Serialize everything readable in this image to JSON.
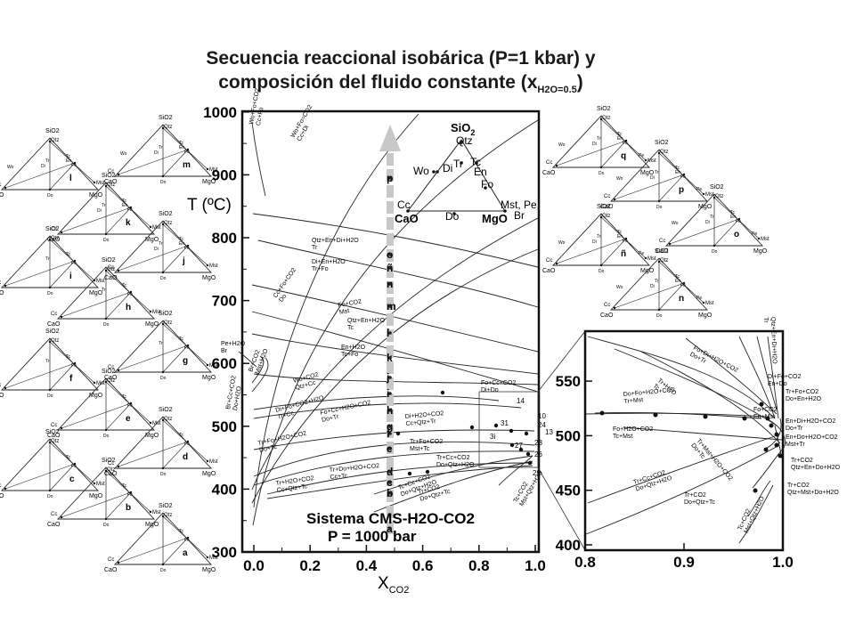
{
  "title": {
    "line1": "Secuencia reaccional isobárica (P=1 kbar) y",
    "line2_pre": "composición del fluido constante (x",
    "line2_sub": "H2O=0.5",
    "line2_post": ")"
  },
  "main_chart": {
    "type": "line",
    "ylabel": "T (ºC)",
    "xlabel_main": "X",
    "xlabel_sub": "CO2",
    "x_ticks": [
      "0.0",
      "0.2",
      "0.4",
      "0.6",
      "0.8",
      "1.0"
    ],
    "y_ticks": [
      "300",
      "400",
      "500",
      "600",
      "700",
      "800",
      "900",
      "1000"
    ],
    "system_label_1": "Sistema CMS-H2O-CO2",
    "system_label_2": "P = 1000 bar",
    "seq_letters": [
      "p",
      "o",
      "ñ",
      "n",
      "m",
      "l",
      "k",
      "j",
      "i",
      "h",
      "g",
      "f",
      "e",
      "d",
      "c",
      "b",
      "a"
    ],
    "point_numbers": [
      "14",
      "10",
      "24",
      "13",
      "31",
      "3i",
      "27",
      "28",
      "26",
      "29"
    ],
    "reactions": [
      "Wo+Fo+CO2 Cc+Fo",
      "Wo+Fo=CO2 Cc+Di",
      "Qtz+En+Di+H2O Tr",
      "Di+En+H2O Tr+Fo",
      "Cc+Fo+CO2 Do",
      "Fo+CO2 Mst",
      "Qtz+En+H2O Tc",
      "En+H2O Tc+Fo",
      "Wo+CO2 Qtz+Cc",
      "Di+Fo+CO2+H2O Tr+Cc",
      "Fo+Cc+H2O+CO2 Do+Tr",
      "Tr+Fo+H2O+CO2 Do+Tc",
      "Fo+Cc+CO2 Di+Do",
      "Di+H2O+CO2 Cc+Qtz+Tr",
      "Tr+Fo+CO2 Mst+Tc",
      "Tr+Cc+CO2 Do+Qtz+H2O",
      "Tr+Do+H2O+CO2 Cc+Tc",
      "Tr+H2O+CO2 Cc+Qtz+Tc",
      "Tc+Cc+CO2 Do+Qtz+H2O",
      "Tr+CO2 Do+Qtz+Tc",
      "Tc+CO2 Mst+Qtz+H2O",
      "Pe+H2O Br",
      "Br+Cc+CO2 Do+H2O",
      "Br+CO2 Mst+H2O"
    ]
  },
  "inset_phase": {
    "apex": "SiO",
    "apex_sub": "2",
    "minerals": [
      "Qtz",
      "Wo",
      "Di",
      "Tr",
      "Tc",
      "En",
      "Fo",
      "Cc",
      "Do",
      "Mst, Pe,",
      "Br"
    ],
    "corners": [
      "CaO",
      "MgO"
    ]
  },
  "zoom_chart": {
    "x_ticks": [
      "0.8",
      "0.9",
      "1.0"
    ],
    "y_ticks": [
      "400",
      "450",
      "500",
      "550"
    ],
    "reactions": [
      "Fo+Di+H2O+CO2 Do+Tr",
      "Tr+H2O Tc",
      "Di+Fo+CO2 En+Do",
      "Tr+Fo+CO2 Do+En+H2O",
      "Fo+CO2 En+Mst",
      "Do+Fo+H2O+CO2 Tr+Mst",
      "Fo+H2O+CO2 Tc+Mst",
      "En+Di+H2O+CO2 Do+Tr",
      "En+Do+H2O+CO2 Mst+Tr",
      "Tr+Mst+H2O+CO2 Do+Tc",
      "Tr+Cc+CO2 Do+Qtz+H2O",
      "Tr+CO2 Do+Qtz+Tc",
      "Tr+CO2 Qtz+En+Do+H2O",
      "Tr+CO2 Qtz+Mst+Do+H2O",
      "Qtz+En+Di+H2O Tr",
      "Tc+CO2 Mst+Qtz+H2O"
    ]
  },
  "triangles": {
    "apex": "SiO2",
    "qtz": "Qtz",
    "left_corner": "CaO",
    "right_corner": "MgO",
    "cc": "Cc",
    "do": "Do",
    "mst": "Mst",
    "fo": "Fo",
    "en": "En",
    "tc": "Tc",
    "tr": "Tr",
    "di": "Di",
    "wo": "Wo",
    "pe": "Pe",
    "letters": [
      "a",
      "b",
      "c",
      "d",
      "e",
      "f",
      "g",
      "h",
      "i",
      "j",
      "k",
      "l",
      "m",
      "n",
      "ñ",
      "o",
      "p",
      "q"
    ]
  }
}
